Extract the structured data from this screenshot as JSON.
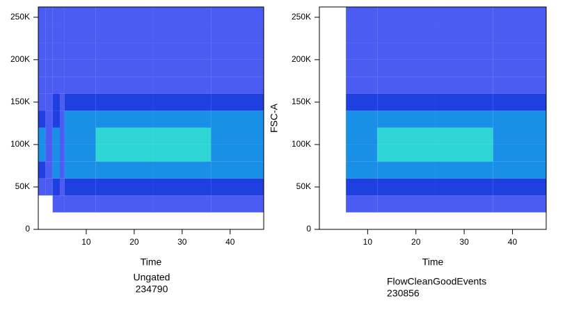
{
  "chart_data": [
    {
      "type": "heatmap",
      "x_label": "Time",
      "gate": "Ungated",
      "events": "234790",
      "xlim": [
        0,
        47
      ],
      "ylim": [
        0,
        262144
      ],
      "xticks": [
        10,
        20,
        30,
        40
      ],
      "yticks": [
        0,
        {
          "value": 50000,
          "label": "50K"
        },
        {
          "value": 100000,
          "label": "100K"
        },
        {
          "value": 150000,
          "label": "150K"
        },
        {
          "value": 200000,
          "label": "200K"
        },
        {
          "value": 250000,
          "label": "250K"
        }
      ],
      "colors": [
        "#ffffff",
        "#4a5cf2",
        "#1f3fe0",
        "#1a8fe8",
        "#2fd6d6"
      ],
      "xbins": [
        0,
        1.5,
        3,
        4.5,
        5.5,
        12,
        24,
        36,
        47
      ],
      "ybins": [
        0,
        20000,
        40000,
        60000,
        80000,
        100000,
        120000,
        140000,
        160000,
        180000,
        200000,
        220000,
        240000,
        262144
      ],
      "z": [
        [
          0,
          0,
          1,
          2,
          3,
          3,
          2,
          1,
          1,
          1,
          1,
          1,
          1
        ],
        [
          0,
          0,
          1,
          1,
          1,
          1,
          1,
          1,
          1,
          1,
          1,
          1,
          1
        ],
        [
          0,
          1,
          2,
          3,
          3,
          3,
          2,
          2,
          1,
          1,
          1,
          1,
          1
        ],
        [
          0,
          1,
          1,
          1,
          1,
          1,
          1,
          1,
          1,
          1,
          1,
          1,
          1
        ],
        [
          0,
          1,
          2,
          3,
          3,
          3,
          3,
          2,
          1,
          1,
          1,
          1,
          1
        ],
        [
          0,
          1,
          2,
          3,
          4,
          4,
          3,
          2,
          1,
          1,
          1,
          1,
          1
        ],
        [
          0,
          1,
          2,
          3,
          4,
          4,
          3,
          2,
          1,
          1,
          1,
          1,
          1
        ],
        [
          0,
          1,
          2,
          3,
          3,
          3,
          3,
          2,
          1,
          1,
          1,
          1,
          1
        ]
      ]
    },
    {
      "type": "heatmap",
      "x_label": "Time",
      "y_label": "FSC-A",
      "gate": "FlowCleanGoodEvents",
      "events": "230856",
      "xlim": [
        0,
        47
      ],
      "ylim": [
        0,
        262144
      ],
      "xticks": [
        10,
        20,
        30,
        40
      ],
      "yticks": [
        0,
        {
          "value": 50000,
          "label": "50K"
        },
        {
          "value": 100000,
          "label": "100K"
        },
        {
          "value": 150000,
          "label": "150K"
        },
        {
          "value": 200000,
          "label": "200K"
        },
        {
          "value": 250000,
          "label": "250K"
        }
      ],
      "colors": [
        "#ffffff",
        "#4a5cf2",
        "#1f3fe0",
        "#1a8fe8",
        "#2fd6d6"
      ],
      "xbins": [
        0,
        5.5,
        12,
        24,
        36,
        47
      ],
      "ybins": [
        0,
        20000,
        40000,
        60000,
        80000,
        100000,
        120000,
        140000,
        160000,
        180000,
        200000,
        220000,
        240000,
        262144
      ],
      "z": [
        [
          0,
          0,
          0,
          0,
          0,
          0,
          0,
          0,
          0,
          0,
          0,
          0,
          0
        ],
        [
          0,
          1,
          2,
          3,
          3,
          3,
          3,
          2,
          1,
          1,
          1,
          1,
          1
        ],
        [
          0,
          1,
          2,
          3,
          4,
          4,
          3,
          2,
          1,
          1,
          1,
          1,
          1
        ],
        [
          0,
          1,
          2,
          3,
          4,
          4,
          3,
          2,
          1,
          1,
          1,
          1,
          1
        ],
        [
          0,
          1,
          2,
          3,
          3,
          3,
          3,
          2,
          1,
          1,
          1,
          1,
          1
        ]
      ]
    }
  ]
}
